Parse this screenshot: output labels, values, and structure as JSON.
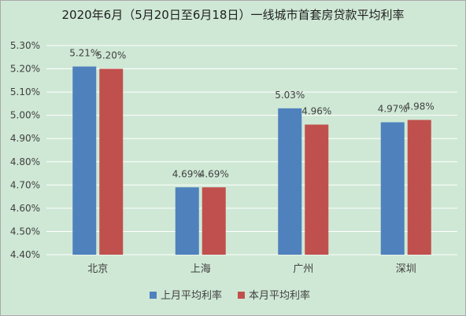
{
  "chart_data": {
    "type": "bar",
    "title": "2020年6月（5月20日至6月18日）一线城市首套房贷款平均利率",
    "categories": [
      "北京",
      "上海",
      "广州",
      "深圳"
    ],
    "series": [
      {
        "name": "上月平均利率",
        "values": [
          5.21,
          4.69,
          5.03,
          4.97
        ],
        "labels": [
          "5.21%",
          "4.69%",
          "5.03%",
          "4.97%"
        ],
        "color": "#4f81bd"
      },
      {
        "name": "本月平均利率",
        "values": [
          5.2,
          4.69,
          4.96,
          4.98
        ],
        "labels": [
          "5.20%",
          "4.69%",
          "4.96%",
          "4.98%"
        ],
        "color": "#c0504d"
      }
    ],
    "ylim": [
      4.4,
      5.3
    ],
    "yticks": [
      4.4,
      4.5,
      4.6,
      4.7,
      4.8,
      4.9,
      5.0,
      5.1,
      5.2,
      5.3
    ],
    "ytick_labels": [
      "4.40%",
      "4.50%",
      "4.60%",
      "4.70%",
      "4.80%",
      "4.90%",
      "5.00%",
      "5.10%",
      "5.20%",
      "5.30%"
    ],
    "grid": true,
    "legend_position": "bottom",
    "background_color": "#cfe8d5",
    "grid_color": "#ffffff"
  }
}
